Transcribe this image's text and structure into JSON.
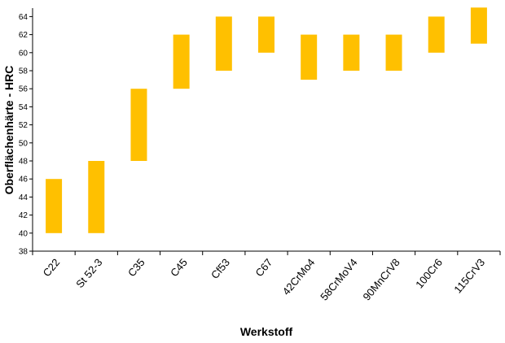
{
  "chart_data": {
    "type": "bar",
    "subtype": "floating-range",
    "title": "",
    "xlabel": "Werkstoff",
    "ylabel": "Oberflächenhärte - HRC",
    "ylim": [
      38,
      65
    ],
    "yticks": [
      38,
      40,
      42,
      44,
      46,
      48,
      50,
      52,
      54,
      56,
      58,
      60,
      62,
      64
    ],
    "grid": false,
    "legend": "none",
    "bar_color": "#FFC000",
    "categories": [
      "C22",
      "St 52-3",
      "C35",
      "C45",
      "Cf53",
      "C67",
      "42CrMo4",
      "58CrMoV4",
      "90MnCrV8",
      "100Cr6",
      "115CrV3"
    ],
    "series": [
      {
        "low": [
          40,
          40,
          48,
          56,
          58,
          60,
          57,
          58,
          58,
          60,
          61
        ],
        "high": [
          46,
          48,
          56,
          62,
          64,
          64,
          62,
          62,
          62,
          64,
          65
        ]
      }
    ]
  }
}
